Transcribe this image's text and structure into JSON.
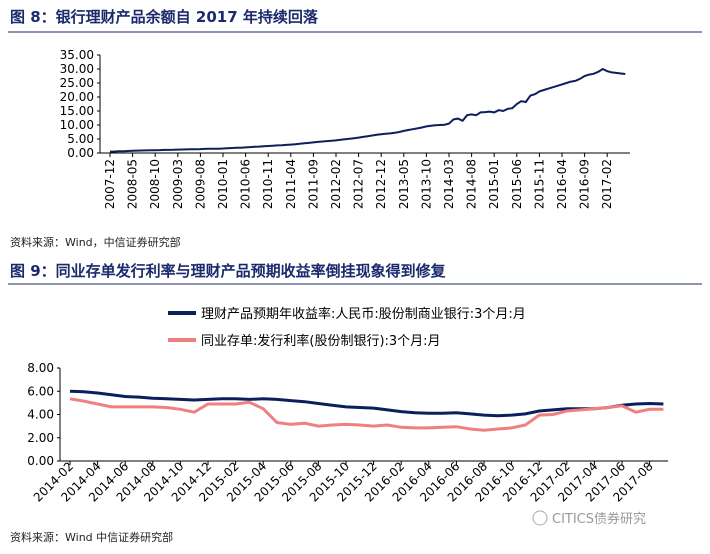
{
  "chart_data": [
    {
      "type": "line",
      "title": "图 8：银行理财产品余额自 2017 年持续回落",
      "source": "资料来源：Wind，中信证券研究部",
      "categories": [
        "2007-12",
        null,
        null,
        null,
        null,
        "2008-05",
        null,
        null,
        null,
        null,
        "2008-10",
        null,
        null,
        null,
        null,
        "2009-03",
        null,
        null,
        null,
        null,
        "2009-08",
        null,
        null,
        null,
        null,
        "2010-01",
        null,
        null,
        null,
        null,
        "2010-06",
        null,
        null,
        null,
        null,
        "2010-11",
        null,
        null,
        null,
        null,
        "2011-04",
        null,
        null,
        null,
        null,
        "2011-09",
        null,
        null,
        null,
        null,
        "2012-02",
        null,
        null,
        null,
        null,
        "2012-07",
        null,
        null,
        null,
        null,
        "2012-12",
        null,
        null,
        null,
        null,
        "2013-05",
        null,
        null,
        null,
        null,
        "2013-10",
        null,
        null,
        null,
        null,
        "2014-03",
        null,
        null,
        null,
        null,
        "2014-08",
        null,
        null,
        null,
        null,
        "2015-01",
        null,
        null,
        null,
        null,
        "2015-06",
        null,
        null,
        null,
        null,
        "2015-11",
        null,
        null,
        null,
        null,
        "2016-04",
        null,
        null,
        null,
        null,
        "2016-09",
        null,
        null,
        null,
        null,
        "2017-02",
        null,
        null,
        null,
        null
      ],
      "series": [
        {
          "color": "#0b1f5c",
          "values": [
            0.5,
            0.55,
            0.6,
            0.65,
            0.7,
            0.8,
            0.85,
            0.9,
            0.92,
            0.95,
            1.0,
            1.05,
            1.1,
            1.12,
            1.15,
            1.2,
            1.25,
            1.3,
            1.32,
            1.35,
            1.4,
            1.45,
            1.5,
            1.52,
            1.55,
            1.6,
            1.7,
            1.8,
            1.85,
            1.9,
            2.0,
            2.1,
            2.2,
            2.3,
            2.4,
            2.5,
            2.6,
            2.7,
            2.8,
            2.9,
            3.0,
            3.15,
            3.3,
            3.45,
            3.6,
            3.8,
            3.95,
            4.1,
            4.25,
            4.4,
            4.5,
            4.7,
            4.9,
            5.1,
            5.3,
            5.5,
            5.75,
            6.0,
            6.25,
            6.5,
            6.7,
            6.85,
            7.0,
            7.2,
            7.5,
            7.9,
            8.2,
            8.5,
            8.8,
            9.1,
            9.5,
            9.7,
            9.9,
            10.0,
            10.1,
            10.5,
            12.0,
            12.3,
            11.5,
            13.5,
            13.8,
            13.5,
            14.5,
            14.6,
            14.8,
            14.5,
            15.3,
            15.0,
            15.8,
            16.0,
            17.5,
            18.5,
            18.2,
            20.5,
            21.0,
            22.0,
            22.5,
            23.0,
            23.5,
            24.0,
            24.5,
            25.0,
            25.5,
            25.8,
            26.5,
            27.5,
            28.0,
            28.3,
            29.0,
            30.0,
            29.2,
            28.8,
            28.6,
            28.4,
            28.2
          ]
        }
      ],
      "ylim": [
        0,
        35
      ],
      "yticks": [
        {
          "value": 0,
          "label": "0.00"
        },
        {
          "value": 5,
          "label": "5.00"
        },
        {
          "value": 10,
          "label": "10.00"
        },
        {
          "value": 15,
          "label": "15.00"
        },
        {
          "value": 20,
          "label": "20.00"
        },
        {
          "value": 25,
          "label": "25.00"
        },
        {
          "value": 30,
          "label": "30.00"
        },
        {
          "value": 35,
          "label": "35.00"
        }
      ],
      "grid": false
    },
    {
      "type": "line",
      "title": "图 9：同业存单发行利率与理财产品预期收益率倒挂现象得到修复",
      "source": "资料来源：Wind  中信证券研究部",
      "categories": [
        "2014-02",
        null,
        "2014-04",
        null,
        "2014-06",
        null,
        "2014-08",
        null,
        "2014-10",
        null,
        "2014-12",
        null,
        "2015-02",
        null,
        "2015-04",
        null,
        "2015-06",
        null,
        "2015-08",
        null,
        "2015-10",
        null,
        "2015-12",
        null,
        "2016-02",
        null,
        "2016-04",
        null,
        "2016-06",
        null,
        "2016-08",
        null,
        "2016-10",
        null,
        "2016-12",
        null,
        "2017-02",
        null,
        "2017-04",
        null,
        "2017-06",
        null,
        "2017-08",
        null
      ],
      "series": [
        {
          "name": "理财产品预期年收益率:人民币:股份制商业银行:3个月:月",
          "color": "#0b1f5c",
          "values": [
            6.0,
            5.95,
            5.85,
            5.7,
            5.55,
            5.5,
            5.4,
            5.35,
            5.3,
            5.25,
            5.3,
            5.35,
            5.35,
            5.3,
            5.35,
            5.3,
            5.2,
            5.1,
            4.95,
            4.8,
            4.65,
            4.6,
            4.55,
            4.4,
            4.25,
            4.15,
            4.1,
            4.1,
            4.15,
            4.05,
            3.95,
            3.9,
            3.95,
            4.05,
            4.3,
            4.4,
            4.5,
            4.5,
            4.5,
            4.6,
            4.8,
            4.9,
            4.95,
            4.9
          ]
        },
        {
          "name": "同业存单:发行利率(股份制银行):3个月:月",
          "color": "#f08080",
          "values": [
            5.35,
            5.15,
            4.9,
            4.65,
            4.65,
            4.65,
            4.65,
            4.6,
            4.45,
            4.2,
            4.9,
            4.9,
            4.9,
            5.05,
            4.5,
            3.3,
            3.15,
            3.25,
            3.0,
            3.1,
            3.15,
            3.1,
            3.0,
            3.1,
            2.9,
            2.85,
            2.85,
            2.9,
            2.95,
            2.75,
            2.65,
            2.75,
            2.85,
            3.1,
            3.95,
            4.0,
            4.3,
            4.4,
            4.5,
            4.6,
            4.75,
            4.2,
            4.45,
            4.45
          ]
        }
      ],
      "ylim": [
        0,
        8
      ],
      "yticks": [
        {
          "value": 0,
          "label": "0.00"
        },
        {
          "value": 2,
          "label": "2.00"
        },
        {
          "value": 4,
          "label": "4.00"
        },
        {
          "value": 6,
          "label": "6.00"
        },
        {
          "value": 8,
          "label": "8.00"
        }
      ],
      "legend": "top",
      "grid": false
    }
  ],
  "watermark": "CITICS债券研究"
}
